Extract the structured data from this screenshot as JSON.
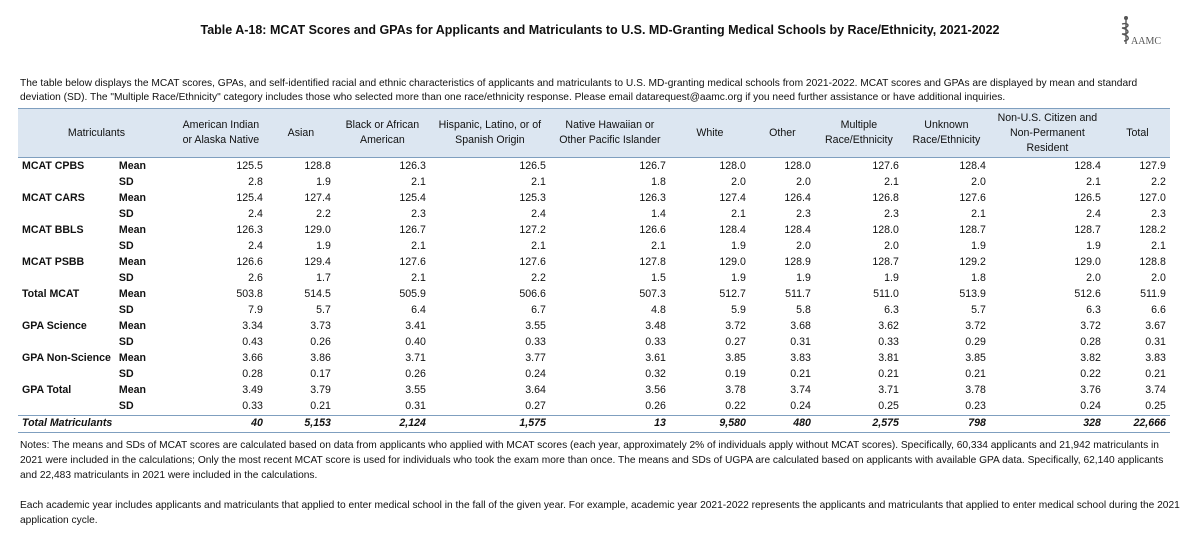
{
  "header": {
    "title": "Table A-18: MCAT Scores and GPAs for Applicants and Matriculants to U.S. MD-Granting Medical Schools by Race/Ethnicity, 2021-2022",
    "logo": "AAMC"
  },
  "intro": "The table below displays the MCAT scores, GPAs, and self-identified racial and ethnic characteristics of applicants and matriculants to U.S. MD-granting medical schools from 2021-2022. MCAT scores and GPAs are displayed by mean and standard deviation (SD). The \"Multiple Race/Ethnicity\" category includes those who selected more than one race/ethnicity response. Please email datarequest@aamc.org if you need further assistance or have additional inquiries.",
  "table": {
    "corner": "Matriculants",
    "columns": [
      "American Indian or Alaska Native",
      "Asian",
      "Black or African American",
      "Hispanic, Latino, or of Spanish Origin",
      "Native Hawaiian or Other Pacific Islander",
      "White",
      "Other",
      "Multiple Race/Ethnicity",
      "Unknown Race/Ethnicity",
      "Non-U.S. Citizen and Non-Permanent Resident",
      "Total"
    ],
    "rows": [
      {
        "label": "MCAT CPBS",
        "stat": "Mean",
        "values": [
          "125.5",
          "128.8",
          "126.3",
          "126.5",
          "126.7",
          "128.0",
          "128.0",
          "127.6",
          "128.4",
          "128.4",
          "127.9"
        ]
      },
      {
        "stat": "SD",
        "values": [
          "2.8",
          "1.9",
          "2.1",
          "2.1",
          "1.8",
          "2.0",
          "2.0",
          "2.1",
          "2.0",
          "2.1",
          "2.2"
        ]
      },
      {
        "label": "MCAT CARS",
        "stat": "Mean",
        "values": [
          "125.4",
          "127.4",
          "125.4",
          "125.3",
          "126.3",
          "127.4",
          "126.4",
          "126.8",
          "127.6",
          "126.5",
          "127.0"
        ]
      },
      {
        "stat": "SD",
        "values": [
          "2.4",
          "2.2",
          "2.3",
          "2.4",
          "1.4",
          "2.1",
          "2.3",
          "2.3",
          "2.1",
          "2.4",
          "2.3"
        ]
      },
      {
        "label": "MCAT BBLS",
        "stat": "Mean",
        "values": [
          "126.3",
          "129.0",
          "126.7",
          "127.2",
          "126.6",
          "128.4",
          "128.4",
          "128.0",
          "128.7",
          "128.7",
          "128.2"
        ]
      },
      {
        "stat": "SD",
        "values": [
          "2.4",
          "1.9",
          "2.1",
          "2.1",
          "2.1",
          "1.9",
          "2.0",
          "2.0",
          "1.9",
          "1.9",
          "2.1"
        ]
      },
      {
        "label": "MCAT PSBB",
        "stat": "Mean",
        "values": [
          "126.6",
          "129.4",
          "127.6",
          "127.6",
          "127.8",
          "129.0",
          "128.9",
          "128.7",
          "129.2",
          "129.0",
          "128.8"
        ]
      },
      {
        "stat": "SD",
        "values": [
          "2.6",
          "1.7",
          "2.1",
          "2.2",
          "1.5",
          "1.9",
          "1.9",
          "1.9",
          "1.8",
          "2.0",
          "2.0"
        ]
      },
      {
        "label": "Total MCAT",
        "stat": "Mean",
        "values": [
          "503.8",
          "514.5",
          "505.9",
          "506.6",
          "507.3",
          "512.7",
          "511.7",
          "511.0",
          "513.9",
          "512.6",
          "511.9"
        ]
      },
      {
        "stat": "SD",
        "values": [
          "7.9",
          "5.7",
          "6.4",
          "6.7",
          "4.8",
          "5.9",
          "5.8",
          "6.3",
          "5.7",
          "6.3",
          "6.6"
        ]
      },
      {
        "label": "GPA Science",
        "stat": "Mean",
        "values": [
          "3.34",
          "3.73",
          "3.41",
          "3.55",
          "3.48",
          "3.72",
          "3.68",
          "3.62",
          "3.72",
          "3.72",
          "3.67"
        ]
      },
      {
        "stat": "SD",
        "values": [
          "0.43",
          "0.26",
          "0.40",
          "0.33",
          "0.33",
          "0.27",
          "0.31",
          "0.33",
          "0.29",
          "0.28",
          "0.31"
        ]
      },
      {
        "label": "GPA Non-Science",
        "stat": "Mean",
        "values": [
          "3.66",
          "3.86",
          "3.71",
          "3.77",
          "3.61",
          "3.85",
          "3.83",
          "3.81",
          "3.85",
          "3.82",
          "3.83"
        ]
      },
      {
        "stat": "SD",
        "values": [
          "0.28",
          "0.17",
          "0.26",
          "0.24",
          "0.32",
          "0.19",
          "0.21",
          "0.21",
          "0.21",
          "0.22",
          "0.21"
        ]
      },
      {
        "label": "GPA Total",
        "stat": "Mean",
        "values": [
          "3.49",
          "3.79",
          "3.55",
          "3.64",
          "3.56",
          "3.78",
          "3.74",
          "3.71",
          "3.78",
          "3.76",
          "3.74"
        ]
      },
      {
        "stat": "SD",
        "values": [
          "0.33",
          "0.21",
          "0.31",
          "0.27",
          "0.26",
          "0.22",
          "0.24",
          "0.25",
          "0.23",
          "0.24",
          "0.25"
        ]
      }
    ],
    "total_row": {
      "label": "Total Matriculants",
      "values": [
        "40",
        "5,153",
        "2,124",
        "1,575",
        "13",
        "9,580",
        "480",
        "2,575",
        "798",
        "328",
        "22,666"
      ]
    }
  },
  "notes": [
    "Notes: The means and SDs of MCAT scores are calculated based on data from applicants who applied with MCAT scores (each year, approximately 2% of individuals apply without MCAT scores).  Specifically, 60,334 applicants and 21,942 matriculants in 2021 were included in the calculations;  Only the most recent MCAT score is used for individuals who took the exam more than once. The means and SDs of UGPA are calculated based on applicants with available GPA data.  Specifically, 62,140 applicants and 22,483 matriculants in 2021 were included in the calculations.",
    "Each academic year includes applicants and matriculants that applied to enter medical school in the fall of the given year. For example, academic year 2021-2022 represents the applicants and matriculants that applied to enter medical school during the 2021 application cycle."
  ]
}
